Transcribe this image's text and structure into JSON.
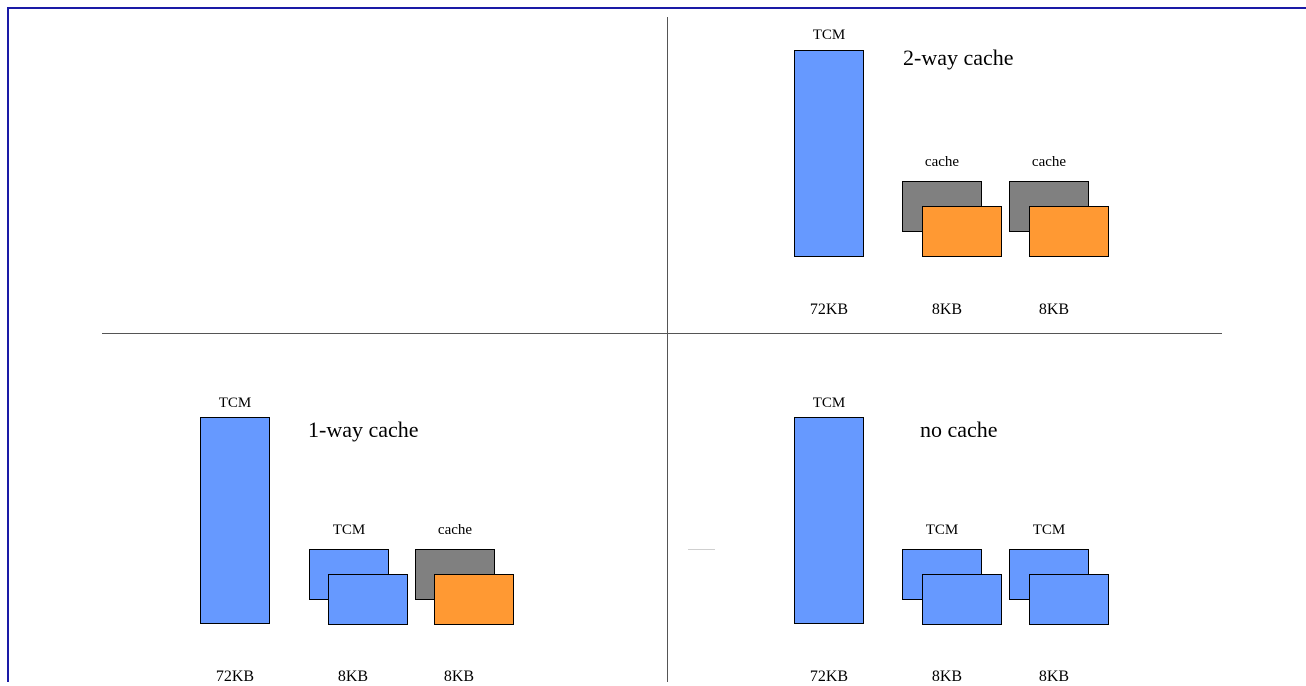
{
  "colors": {
    "tcm": "#6699ff",
    "cache_back": "#808080",
    "cache_front": "#ff9933",
    "border": "#1a1aa6"
  },
  "panels": [
    {
      "id": "two-way",
      "title": "2-way cache",
      "main_label": "TCM",
      "main_size": "72KB",
      "blocks": [
        {
          "label": "cache",
          "kind": "cache",
          "size": "8KB"
        },
        {
          "label": "cache",
          "kind": "cache",
          "size": "8KB"
        }
      ]
    },
    {
      "id": "one-way",
      "title": "1-way cache",
      "main_label": "TCM",
      "main_size": "72KB",
      "blocks": [
        {
          "label": "TCM",
          "kind": "tcm",
          "size": "8KB"
        },
        {
          "label": "cache",
          "kind": "cache",
          "size": "8KB"
        }
      ]
    },
    {
      "id": "no-cache",
      "title": "no cache",
      "main_label": "TCM",
      "main_size": "72KB",
      "blocks": [
        {
          "label": "TCM",
          "kind": "tcm",
          "size": "8KB"
        },
        {
          "label": "TCM",
          "kind": "tcm",
          "size": "8KB"
        }
      ]
    }
  ]
}
